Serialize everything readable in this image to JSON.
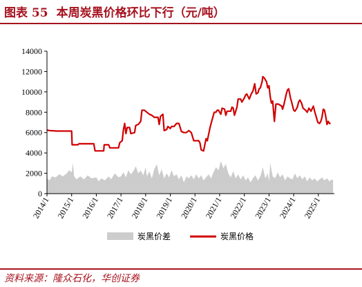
{
  "header": {
    "figure_label": "图表 55",
    "title": "本周炭黑价格环比下行（元/吨）"
  },
  "footer": {
    "source": "资料来源：隆众石化，华创证券"
  },
  "chart_data": {
    "type": "line",
    "xlabel": "",
    "ylabel": "",
    "ylim": [
      0,
      14000
    ],
    "yticks": [
      0,
      2000,
      4000,
      6000,
      8000,
      10000,
      12000,
      14000
    ],
    "xticks": [
      "2014/1",
      "2015/1",
      "2016/1",
      "2017/1",
      "2018/1",
      "2019/1",
      "2020/1",
      "2021/1",
      "2022/1",
      "2023/1",
      "2024/1",
      "2025/1"
    ],
    "xlim_years": [
      2014.0,
      2025.65
    ],
    "grid": false,
    "legend_position": "bottom",
    "series": [
      {
        "name": "炭黑价差",
        "kind": "area",
        "color": "#cccccc",
        "points": [
          [
            2014.0,
            1500
          ],
          [
            2014.1,
            1300
          ],
          [
            2014.2,
            1700
          ],
          [
            2014.35,
            1600
          ],
          [
            2014.5,
            1900
          ],
          [
            2014.65,
            1700
          ],
          [
            2014.8,
            2000
          ],
          [
            2014.9,
            2300
          ],
          [
            2015.0,
            2100
          ],
          [
            2015.05,
            3000
          ],
          [
            2015.1,
            1700
          ],
          [
            2015.2,
            1400
          ],
          [
            2015.35,
            1700
          ],
          [
            2015.5,
            1400
          ],
          [
            2015.65,
            1800
          ],
          [
            2015.8,
            1500
          ],
          [
            2016.0,
            1600
          ],
          [
            2016.1,
            1200
          ],
          [
            2016.2,
            1500
          ],
          [
            2016.35,
            1300
          ],
          [
            2016.5,
            1700
          ],
          [
            2016.6,
            1400
          ],
          [
            2016.75,
            2000
          ],
          [
            2016.9,
            1600
          ],
          [
            2017.0,
            1700
          ],
          [
            2017.1,
            2100
          ],
          [
            2017.2,
            1600
          ],
          [
            2017.3,
            2300
          ],
          [
            2017.4,
            1900
          ],
          [
            2017.5,
            2200
          ],
          [
            2017.6,
            2700
          ],
          [
            2017.7,
            2000
          ],
          [
            2017.8,
            2300
          ],
          [
            2017.9,
            1800
          ],
          [
            2018.0,
            2600
          ],
          [
            2018.05,
            1700
          ],
          [
            2018.15,
            2200
          ],
          [
            2018.25,
            1500
          ],
          [
            2018.35,
            2400
          ],
          [
            2018.45,
            2900
          ],
          [
            2018.55,
            1800
          ],
          [
            2018.65,
            2400
          ],
          [
            2018.75,
            1500
          ],
          [
            2018.85,
            2000
          ],
          [
            2018.95,
            1600
          ],
          [
            2019.05,
            2300
          ],
          [
            2019.15,
            1700
          ],
          [
            2019.25,
            1900
          ],
          [
            2019.35,
            1400
          ],
          [
            2019.45,
            1800
          ],
          [
            2019.55,
            1100
          ],
          [
            2019.65,
            1700
          ],
          [
            2019.75,
            1500
          ],
          [
            2019.85,
            1800
          ],
          [
            2019.95,
            1400
          ],
          [
            2020.05,
            1900
          ],
          [
            2020.15,
            1500
          ],
          [
            2020.25,
            1800
          ],
          [
            2020.35,
            1300
          ],
          [
            2020.45,
            1600
          ],
          [
            2020.55,
            1900
          ],
          [
            2020.65,
            1500
          ],
          [
            2020.75,
            2100
          ],
          [
            2020.85,
            2600
          ],
          [
            2020.95,
            2300
          ],
          [
            2021.05,
            3200
          ],
          [
            2021.15,
            2500
          ],
          [
            2021.25,
            2900
          ],
          [
            2021.35,
            2000
          ],
          [
            2021.45,
            1600
          ],
          [
            2021.55,
            2200
          ],
          [
            2021.65,
            1500
          ],
          [
            2021.75,
            1900
          ],
          [
            2021.85,
            1400
          ],
          [
            2021.95,
            1800
          ],
          [
            2022.05,
            1300
          ],
          [
            2022.15,
            1600
          ],
          [
            2022.25,
            1100
          ],
          [
            2022.35,
            1500
          ],
          [
            2022.45,
            1800
          ],
          [
            2022.55,
            1300
          ],
          [
            2022.65,
            1700
          ],
          [
            2022.75,
            2600
          ],
          [
            2022.85,
            1500
          ],
          [
            2022.95,
            2000
          ],
          [
            2023.0,
            1200
          ],
          [
            2023.05,
            3000
          ],
          [
            2023.15,
            1700
          ],
          [
            2023.25,
            1500
          ],
          [
            2023.35,
            2100
          ],
          [
            2023.45,
            1600
          ],
          [
            2023.55,
            1900
          ],
          [
            2023.65,
            1300
          ],
          [
            2023.75,
            1700
          ],
          [
            2023.85,
            1500
          ],
          [
            2023.95,
            1400
          ],
          [
            2024.05,
            2000
          ],
          [
            2024.15,
            1500
          ],
          [
            2024.25,
            1800
          ],
          [
            2024.35,
            1400
          ],
          [
            2024.45,
            1700
          ],
          [
            2024.55,
            1200
          ],
          [
            2024.65,
            1600
          ],
          [
            2024.75,
            1300
          ],
          [
            2024.85,
            1500
          ],
          [
            2024.95,
            1200
          ],
          [
            2025.05,
            1400
          ],
          [
            2025.15,
            1600
          ],
          [
            2025.25,
            1300
          ],
          [
            2025.35,
            1500
          ],
          [
            2025.45,
            1200
          ],
          [
            2025.55,
            1400
          ],
          [
            2025.6,
            1300
          ]
        ]
      },
      {
        "name": "炭黑价格",
        "kind": "line",
        "color": "#d00000",
        "points": [
          [
            2014.0,
            6250
          ],
          [
            2014.1,
            6200
          ],
          [
            2014.4,
            6150
          ],
          [
            2015.0,
            6150
          ],
          [
            2015.02,
            4800
          ],
          [
            2015.25,
            4800
          ],
          [
            2015.3,
            4900
          ],
          [
            2015.9,
            4900
          ],
          [
            2015.95,
            4200
          ],
          [
            2016.3,
            4200
          ],
          [
            2016.32,
            4800
          ],
          [
            2016.5,
            4800
          ],
          [
            2016.55,
            4500
          ],
          [
            2016.9,
            4500
          ],
          [
            2016.95,
            5000
          ],
          [
            2017.05,
            5200
          ],
          [
            2017.1,
            6300
          ],
          [
            2017.15,
            6900
          ],
          [
            2017.2,
            5900
          ],
          [
            2017.25,
            6500
          ],
          [
            2017.35,
            6500
          ],
          [
            2017.4,
            5900
          ],
          [
            2017.55,
            6000
          ],
          [
            2017.6,
            6700
          ],
          [
            2017.7,
            6800
          ],
          [
            2017.8,
            7100
          ],
          [
            2017.85,
            8200
          ],
          [
            2017.95,
            8200
          ],
          [
            2018.05,
            8000
          ],
          [
            2018.15,
            7800
          ],
          [
            2018.25,
            7700
          ],
          [
            2018.35,
            7500
          ],
          [
            2018.5,
            7500
          ],
          [
            2018.55,
            6800
          ],
          [
            2018.6,
            7600
          ],
          [
            2018.7,
            7800
          ],
          [
            2018.75,
            6200
          ],
          [
            2018.85,
            6300
          ],
          [
            2018.9,
            6600
          ],
          [
            2019.0,
            6400
          ],
          [
            2019.05,
            6600
          ],
          [
            2019.15,
            6600
          ],
          [
            2019.25,
            6900
          ],
          [
            2019.35,
            6900
          ],
          [
            2019.45,
            6100
          ],
          [
            2019.55,
            6000
          ],
          [
            2019.65,
            6000
          ],
          [
            2019.75,
            6200
          ],
          [
            2019.85,
            6000
          ],
          [
            2019.95,
            5200
          ],
          [
            2020.05,
            5200
          ],
          [
            2020.15,
            5200
          ],
          [
            2020.2,
            5000
          ],
          [
            2020.25,
            4300
          ],
          [
            2020.35,
            4200
          ],
          [
            2020.45,
            5400
          ],
          [
            2020.5,
            5200
          ],
          [
            2020.55,
            5800
          ],
          [
            2020.62,
            6600
          ],
          [
            2020.7,
            7300
          ],
          [
            2020.78,
            8000
          ],
          [
            2020.85,
            8000
          ],
          [
            2020.9,
            8200
          ],
          [
            2020.95,
            8200
          ],
          [
            2021.05,
            7800
          ],
          [
            2021.1,
            8400
          ],
          [
            2021.2,
            8300
          ],
          [
            2021.25,
            7700
          ],
          [
            2021.3,
            8100
          ],
          [
            2021.45,
            8100
          ],
          [
            2021.5,
            8500
          ],
          [
            2021.55,
            8400
          ],
          [
            2021.6,
            7700
          ],
          [
            2021.7,
            8500
          ],
          [
            2021.75,
            9300
          ],
          [
            2021.85,
            9300
          ],
          [
            2021.9,
            9000
          ],
          [
            2022.0,
            9400
          ],
          [
            2022.05,
            9700
          ],
          [
            2022.1,
            9800
          ],
          [
            2022.2,
            9300
          ],
          [
            2022.28,
            9800
          ],
          [
            2022.35,
            10100
          ],
          [
            2022.42,
            10800
          ],
          [
            2022.48,
            9800
          ],
          [
            2022.55,
            9900
          ],
          [
            2022.6,
            10300
          ],
          [
            2022.65,
            10400
          ],
          [
            2022.72,
            11000
          ],
          [
            2022.75,
            11500
          ],
          [
            2022.8,
            11400
          ],
          [
            2022.9,
            11000
          ],
          [
            2022.95,
            10400
          ],
          [
            2023.0,
            10600
          ],
          [
            2023.05,
            9500
          ],
          [
            2023.1,
            8900
          ],
          [
            2023.15,
            9100
          ],
          [
            2023.22,
            7100
          ],
          [
            2023.28,
            8800
          ],
          [
            2023.38,
            8800
          ],
          [
            2023.45,
            8700
          ],
          [
            2023.52,
            8600
          ],
          [
            2023.55,
            8300
          ],
          [
            2023.6,
            8700
          ],
          [
            2023.7,
            9800
          ],
          [
            2023.75,
            10200
          ],
          [
            2023.8,
            10300
          ],
          [
            2023.88,
            9300
          ],
          [
            2023.92,
            9000
          ],
          [
            2024.0,
            8200
          ],
          [
            2024.05,
            8100
          ],
          [
            2024.1,
            8300
          ],
          [
            2024.15,
            8500
          ],
          [
            2024.2,
            9000
          ],
          [
            2024.25,
            9200
          ],
          [
            2024.32,
            8900
          ],
          [
            2024.38,
            8400
          ],
          [
            2024.48,
            8200
          ],
          [
            2024.55,
            8000
          ],
          [
            2024.62,
            8400
          ],
          [
            2024.7,
            8100
          ],
          [
            2024.8,
            8600
          ],
          [
            2024.85,
            8100
          ],
          [
            2024.92,
            7500
          ],
          [
            2024.98,
            7000
          ],
          [
            2025.05,
            6900
          ],
          [
            2025.1,
            7100
          ],
          [
            2025.15,
            7500
          ],
          [
            2025.2,
            8300
          ],
          [
            2025.25,
            8200
          ],
          [
            2025.3,
            7600
          ],
          [
            2025.35,
            6800
          ],
          [
            2025.4,
            7100
          ],
          [
            2025.45,
            6900
          ],
          [
            2025.5,
            6900
          ]
        ]
      }
    ]
  }
}
